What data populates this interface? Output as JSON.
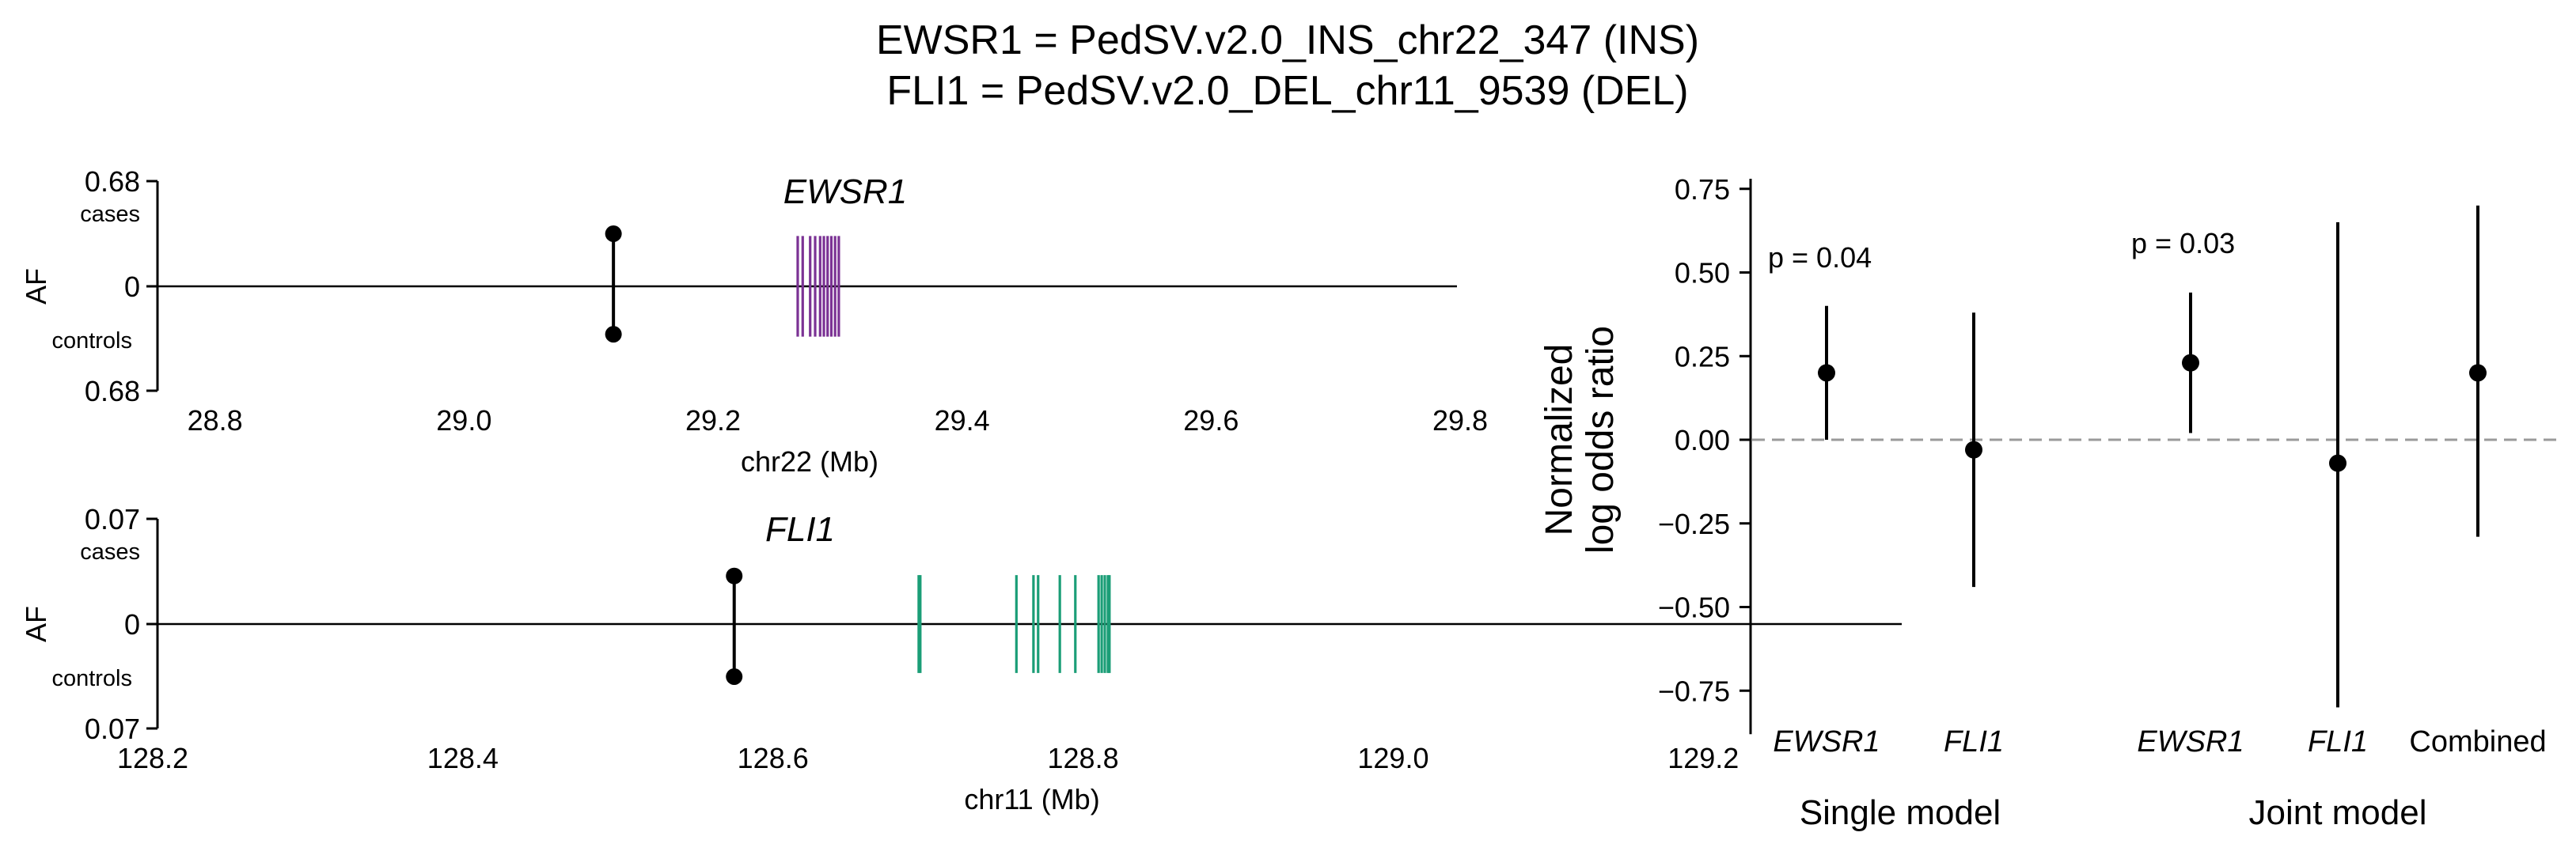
{
  "figure": {
    "title_lines": [
      "EWSR1 = PedSV.v2.0_INS_chr22_347 (INS)",
      "FLI1 = PedSV.v2.0_DEL_chr11_9539 (DEL)"
    ]
  },
  "chart_data": [
    {
      "type": "scatter",
      "title": "EWSR1",
      "xlabel": "chr22 (Mb)",
      "ylabel": "AF",
      "xlim": [
        28.75,
        29.8
      ],
      "ylim": [
        -0.68,
        0.68
      ],
      "x_ticks": [
        "28.8",
        "29.0",
        "29.2",
        "29.4",
        "29.6",
        "29.8"
      ],
      "y_ticks": {
        "top": "0.68",
        "middle": "0",
        "bottom": "0.68"
      },
      "y_sublabels": {
        "top": "cases",
        "bottom": "controls"
      },
      "variant": {
        "x": 29.12,
        "case_af": 0.34,
        "control_af": 0.31
      },
      "gene_color": "#7b3294",
      "gene_exons": [
        29.268,
        29.272,
        29.278,
        29.282,
        29.286,
        29.289,
        29.292,
        29.295,
        29.298,
        29.301
      ],
      "gene_height": 0.35
    },
    {
      "type": "scatter",
      "title": "FLI1",
      "xlabel": "chr11 (Mb)",
      "ylabel": "AF",
      "xlim": [
        128.2,
        129.33
      ],
      "ylim": [
        -0.07,
        0.07
      ],
      "x_ticks": [
        "128.2",
        "128.4",
        "128.6",
        "128.8",
        "129.0",
        "129.2"
      ],
      "y_ticks": {
        "top": "0.07",
        "middle": "0",
        "bottom": "0.07"
      },
      "y_sublabels": {
        "top": "cases",
        "bottom": "controls"
      },
      "variant": {
        "x": 128.575,
        "case_af": 0.032,
        "control_af": 0.035
      },
      "gene_color": "#1b9e77",
      "gene_exons": [
        128.694,
        128.695,
        128.757,
        128.768,
        128.771,
        128.785,
        128.795,
        128.81,
        128.812,
        128.814,
        128.816,
        128.817
      ],
      "gene_height": 0.035
    },
    {
      "type": "scatter",
      "ylabel": "Normalized log odds ratio",
      "ylim": [
        -0.88,
        0.78
      ],
      "y_ticks": [
        0.75,
        0.5,
        0.25,
        0.0,
        -0.25,
        -0.5,
        -0.75
      ],
      "y_tick_labels": [
        "0.75",
        "0.50",
        "0.25",
        "0.00",
        "−0.25",
        "−0.50",
        "−0.75"
      ],
      "reference_line": 0,
      "categories": [
        "EWSR1",
        "FLI1",
        "EWSR1",
        "FLI1",
        "Combined"
      ],
      "groups": [
        {
          "label": "Single model",
          "members": [
            0,
            1
          ]
        },
        {
          "label": "Joint model",
          "members": [
            2,
            3,
            4
          ]
        }
      ],
      "estimates": [
        0.2,
        -0.03,
        0.23,
        -0.07,
        0.2
      ],
      "ci_low": [
        0.0,
        -0.44,
        0.02,
        -0.8,
        -0.29
      ],
      "ci_high": [
        0.4,
        0.38,
        0.44,
        0.65,
        0.7
      ],
      "annotations": [
        {
          "text": "p = 0.04",
          "category": 0
        },
        {
          "text": "p = 0.03",
          "category": 2
        }
      ]
    }
  ]
}
